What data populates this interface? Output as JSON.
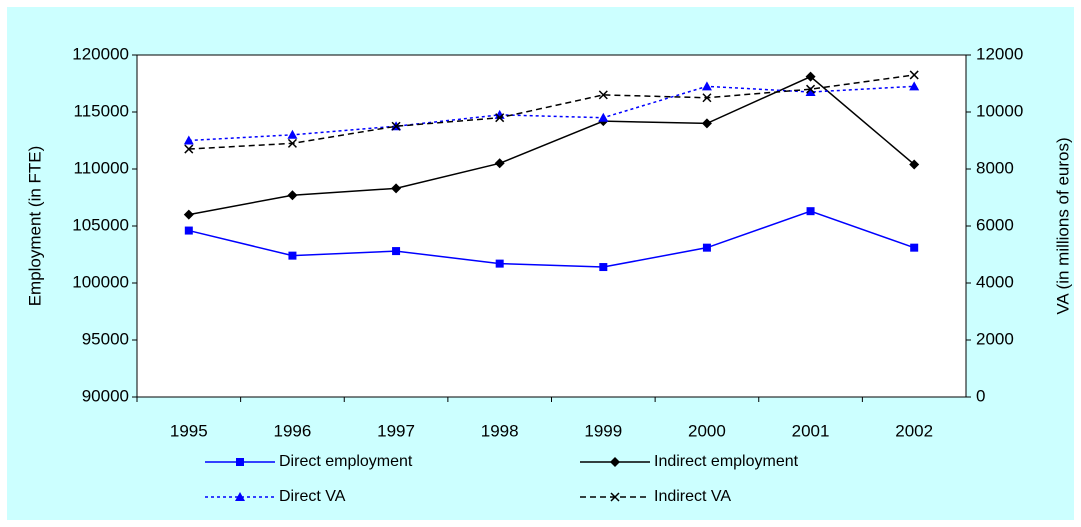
{
  "chart_data": {
    "type": "line",
    "categories": [
      "1995",
      "1996",
      "1997",
      "1998",
      "1999",
      "2000",
      "2001",
      "2002"
    ],
    "ylabel": "Employment (in FTE)",
    "y2label": "VA (in millions of euros)",
    "ylim": [
      90000,
      120000
    ],
    "yticks": [
      90000,
      95000,
      100000,
      105000,
      110000,
      115000,
      120000
    ],
    "y2lim": [
      0,
      12000
    ],
    "y2ticks": [
      0,
      2000,
      4000,
      6000,
      8000,
      10000,
      12000
    ],
    "grid": false,
    "series": [
      {
        "name": "Direct employment",
        "color": "#0000ff",
        "marker": "square",
        "dash": "solid",
        "values": [
          104600,
          102400,
          102800,
          101700,
          101400,
          103100,
          106300,
          103100
        ]
      },
      {
        "name": "Indirect employment",
        "color": "#000000",
        "marker": "diamond",
        "dash": "solid",
        "values": [
          106000,
          107700,
          108300,
          110500,
          114200,
          114000,
          118100,
          110400
        ]
      },
      {
        "name": "Direct VA",
        "color": "#0000ff",
        "marker": "triangle",
        "dash": "dotted",
        "axis": "y2",
        "values": [
          9000,
          9200,
          9500,
          9900,
          9800,
          10900,
          10700,
          10900
        ]
      },
      {
        "name": "Indirect VA",
        "color": "#000000",
        "marker": "x",
        "dash": "dashed",
        "axis": "y2",
        "values": [
          8700,
          8900,
          9500,
          9800,
          10600,
          10500,
          10800,
          11300
        ]
      }
    ]
  }
}
